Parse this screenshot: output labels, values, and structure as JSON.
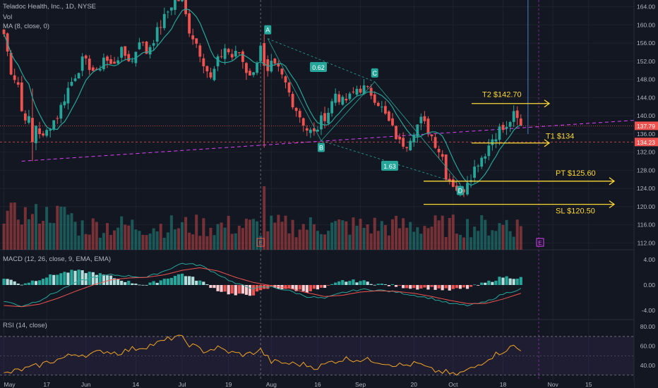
{
  "symbol": {
    "name": "Teladoc Health, Inc.",
    "interval": "1D",
    "exchange": "NYSE"
  },
  "header": {
    "line": "Teladoc Health, Inc., 1D, NYSE",
    "vol_label": "Vol",
    "ma_label": "MA (8, close, 0)"
  },
  "macd_label": "MACD (12, 26, close, 9, EMA, EMA)",
  "rsi_label": "RSI (14, close)",
  "colors": {
    "background": "#131722",
    "up": "#26a69a",
    "down": "#ef5350",
    "ma": "#26a69a",
    "macd": "#26a69a",
    "signal": "#ef5350",
    "rsi": "#f5a623",
    "annotation": "#fdd835",
    "pattern": "#26a69a",
    "current_price_bg": "#ef5350"
  },
  "annotations": {
    "T2": "T2 $142.70",
    "T1": "T1 $134",
    "PT": "PT $125.60",
    "SL": "SL $120.50",
    "A": "A",
    "B": "B",
    "C": "C",
    "D": "D",
    "ratio_bc": "0.62",
    "ratio_cd": "1.63"
  },
  "price_tags": {
    "current": "137.79",
    "second": "134.23"
  },
  "earnings_marker": "E",
  "chart_data": [
    {
      "type": "candlestick",
      "title": "Teladoc Health, Inc., 1D, NYSE",
      "y_ticks": [
        164,
        160,
        156,
        152,
        148,
        144,
        140,
        136,
        132,
        128,
        124,
        120,
        116,
        112
      ],
      "ylim": [
        110.5,
        165.5
      ],
      "x_labels": [
        {
          "label": "May",
          "bar": 0
        },
        {
          "label": "17",
          "bar": 12
        },
        {
          "label": "Jun",
          "bar": 23
        },
        {
          "label": "14",
          "bar": 37
        },
        {
          "label": "Jul",
          "bar": 50
        },
        {
          "label": "19",
          "bar": 63
        },
        {
          "label": "Aug",
          "bar": 75
        },
        {
          "label": "16",
          "bar": 88
        },
        {
          "label": "Sep",
          "bar": 100
        },
        {
          "label": "20",
          "bar": 115
        },
        {
          "label": "Oct",
          "bar": 126
        },
        {
          "label": "18",
          "bar": 140
        },
        {
          "label": "Nov",
          "bar": 154
        },
        {
          "label": "15",
          "bar": 164
        }
      ],
      "close_anchors": [
        [
          0,
          158
        ],
        [
          2,
          150
        ],
        [
          4,
          147
        ],
        [
          5,
          141
        ],
        [
          7,
          139
        ],
        [
          8,
          134
        ],
        [
          9,
          138
        ],
        [
          11,
          135
        ],
        [
          13,
          138
        ],
        [
          15,
          140
        ],
        [
          18,
          146
        ],
        [
          20,
          149
        ],
        [
          22,
          152
        ],
        [
          24,
          151
        ],
        [
          26,
          149
        ],
        [
          28,
          153
        ],
        [
          30,
          151
        ],
        [
          33,
          154
        ],
        [
          36,
          152
        ],
        [
          38,
          157
        ],
        [
          40,
          154
        ],
        [
          42,
          157
        ],
        [
          44,
          160
        ],
        [
          46,
          163
        ],
        [
          48,
          166
        ],
        [
          50,
          165
        ],
        [
          52,
          159
        ],
        [
          54,
          156
        ],
        [
          56,
          152
        ],
        [
          58,
          148
        ],
        [
          60,
          152
        ],
        [
          62,
          155
        ],
        [
          64,
          153
        ],
        [
          66,
          154
        ],
        [
          68,
          150
        ],
        [
          70,
          149
        ],
        [
          72,
          156
        ],
        [
          73,
          152
        ],
        [
          74,
          149
        ],
        [
          75,
          151
        ],
        [
          77,
          150
        ],
        [
          79,
          147
        ],
        [
          81,
          143
        ],
        [
          83,
          140
        ],
        [
          85,
          137
        ],
        [
          87,
          136
        ],
        [
          89,
          139
        ],
        [
          91,
          141
        ],
        [
          93,
          145
        ],
        [
          95,
          143
        ],
        [
          97,
          144
        ],
        [
          99,
          146
        ],
        [
          101,
          146
        ],
        [
          103,
          145
        ],
        [
          105,
          143
        ],
        [
          107,
          140
        ],
        [
          109,
          137
        ],
        [
          111,
          134
        ],
        [
          113,
          134
        ],
        [
          115,
          137
        ],
        [
          117,
          139
        ],
        [
          119,
          137
        ],
        [
          121,
          134
        ],
        [
          123,
          131
        ],
        [
          124,
          127
        ],
        [
          126,
          125
        ],
        [
          128,
          123
        ],
        [
          129,
          124
        ],
        [
          130,
          126
        ],
        [
          131,
          127
        ],
        [
          133,
          130
        ],
        [
          135,
          132
        ],
        [
          137,
          135
        ],
        [
          139,
          137
        ],
        [
          141,
          137
        ],
        [
          142,
          139
        ],
        [
          143,
          140
        ],
        [
          144,
          139
        ],
        [
          145,
          137.79
        ]
      ],
      "volume_range": [
        0,
        32
      ],
      "macd_ticks": [
        4.0,
        0.0,
        -4.0
      ],
      "macd_ylim": [
        -5.3,
        5.3
      ],
      "macd_anchors": [
        [
          0,
          -2.5
        ],
        [
          5,
          -3.3
        ],
        [
          10,
          -2.4
        ],
        [
          15,
          -1.0
        ],
        [
          20,
          0.4
        ],
        [
          25,
          1.2
        ],
        [
          30,
          1.6
        ],
        [
          35,
          1.4
        ],
        [
          40,
          1.2
        ],
        [
          45,
          2.2
        ],
        [
          50,
          3.4
        ],
        [
          55,
          3.1
        ],
        [
          60,
          1.7
        ],
        [
          65,
          0.2
        ],
        [
          70,
          -0.5
        ],
        [
          75,
          -0.3
        ],
        [
          80,
          -0.9
        ],
        [
          85,
          -1.8
        ],
        [
          90,
          -2.1
        ],
        [
          95,
          -1.2
        ],
        [
          100,
          -0.7
        ],
        [
          105,
          -0.8
        ],
        [
          110,
          -1.1
        ],
        [
          115,
          -1.6
        ],
        [
          120,
          -2.1
        ],
        [
          125,
          -2.9
        ],
        [
          130,
          -3.2
        ],
        [
          135,
          -2.7
        ],
        [
          140,
          -1.4
        ],
        [
          145,
          -0.6
        ]
      ],
      "signal_anchors": [
        [
          0,
          -3.2
        ],
        [
          5,
          -3.4
        ],
        [
          10,
          -3.0
        ],
        [
          15,
          -2.1
        ],
        [
          20,
          -1.0
        ],
        [
          25,
          0.0
        ],
        [
          30,
          0.8
        ],
        [
          35,
          1.1
        ],
        [
          40,
          1.2
        ],
        [
          45,
          1.6
        ],
        [
          50,
          2.3
        ],
        [
          55,
          2.7
        ],
        [
          60,
          2.2
        ],
        [
          65,
          1.2
        ],
        [
          70,
          0.4
        ],
        [
          75,
          -0.1
        ],
        [
          80,
          -0.5
        ],
        [
          85,
          -1.2
        ],
        [
          90,
          -1.8
        ],
        [
          95,
          -1.6
        ],
        [
          100,
          -1.1
        ],
        [
          105,
          -0.9
        ],
        [
          110,
          -1.0
        ],
        [
          115,
          -1.3
        ],
        [
          120,
          -1.8
        ],
        [
          125,
          -2.4
        ],
        [
          130,
          -2.9
        ],
        [
          135,
          -2.9
        ],
        [
          140,
          -2.2
        ],
        [
          145,
          -1.3
        ]
      ],
      "rsi_ticks": [
        80.0,
        60.0,
        40.0
      ],
      "rsi_ylim": [
        24,
        86
      ],
      "rsi_levels": [
        70,
        30
      ],
      "rsi_anchors": [
        [
          0,
          31
        ],
        [
          4,
          35
        ],
        [
          8,
          38
        ],
        [
          12,
          43
        ],
        [
          16,
          47
        ],
        [
          20,
          52
        ],
        [
          24,
          51
        ],
        [
          28,
          55
        ],
        [
          32,
          53
        ],
        [
          36,
          57
        ],
        [
          40,
          60
        ],
        [
          44,
          64
        ],
        [
          48,
          70
        ],
        [
          50,
          68
        ],
        [
          52,
          62
        ],
        [
          56,
          55
        ],
        [
          60,
          58
        ],
        [
          64,
          53
        ],
        [
          68,
          51
        ],
        [
          72,
          56
        ],
        [
          75,
          44
        ],
        [
          80,
          42
        ],
        [
          84,
          41
        ],
        [
          88,
          38
        ],
        [
          92,
          44
        ],
        [
          96,
          47
        ],
        [
          100,
          46
        ],
        [
          104,
          45
        ],
        [
          108,
          42
        ],
        [
          112,
          40
        ],
        [
          116,
          42
        ],
        [
          120,
          35
        ],
        [
          124,
          33
        ],
        [
          126,
          30
        ],
        [
          128,
          32
        ],
        [
          132,
          38
        ],
        [
          136,
          48
        ],
        [
          140,
          55
        ],
        [
          143,
          60
        ],
        [
          145,
          55
        ]
      ]
    }
  ]
}
